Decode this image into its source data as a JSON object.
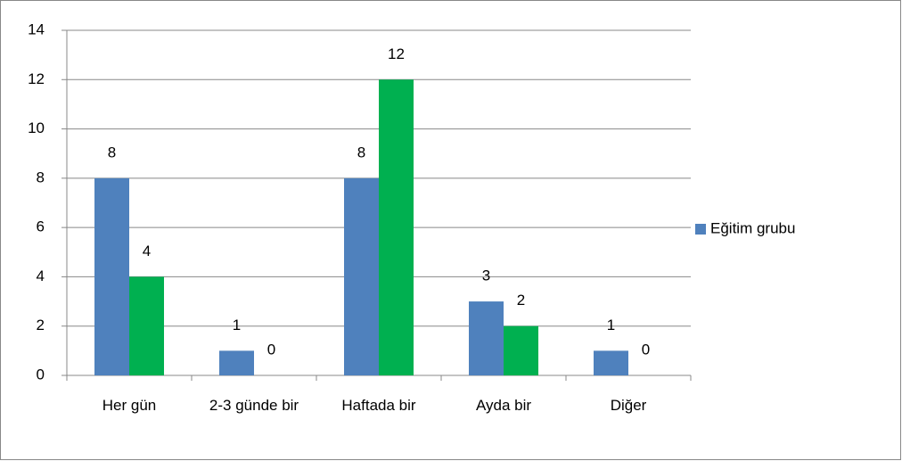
{
  "chart_data": {
    "type": "bar",
    "categories": [
      "Her gün",
      "2-3 günde bir",
      "Haftada bir",
      "Ayda bir",
      "Diğer"
    ],
    "series": [
      {
        "name": "Eğitim grubu",
        "color": "#4f81bd",
        "values": [
          8,
          1,
          8,
          3,
          1
        ]
      },
      {
        "color": "#00b050",
        "values": [
          4,
          0,
          12,
          2,
          0
        ]
      }
    ],
    "ylim": [
      0,
      14
    ],
    "yticks": [
      0,
      2,
      4,
      6,
      8,
      10,
      12,
      14
    ],
    "grid": true,
    "legend": "right"
  }
}
